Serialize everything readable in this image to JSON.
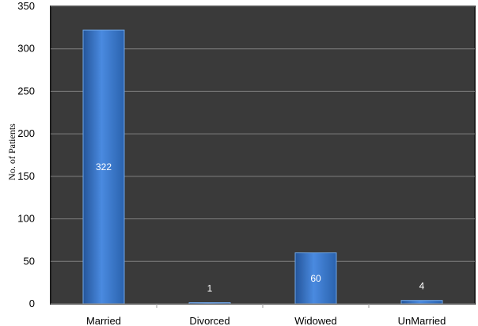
{
  "chart_data": {
    "type": "bar",
    "title": "",
    "xlabel": "",
    "ylabel": "No. of Patients",
    "categories": [
      "Married",
      "Divorced",
      "Widowed",
      "UnMarried"
    ],
    "values": [
      322,
      1,
      60,
      4
    ],
    "data_labels": [
      "322",
      "1",
      "60",
      "4"
    ],
    "ylim": [
      0,
      350
    ],
    "yticks": [
      0,
      50,
      100,
      150,
      200,
      250,
      300,
      350
    ],
    "grid": true,
    "legend": "none",
    "colors": {
      "plot_background": "#3a3a3a",
      "bar": "#3d7bd0",
      "bar_dark": "#24559a",
      "bar_light": "#6fa6e8",
      "gridline": "#7f7f7f",
      "data_label": "#ffffff"
    }
  }
}
